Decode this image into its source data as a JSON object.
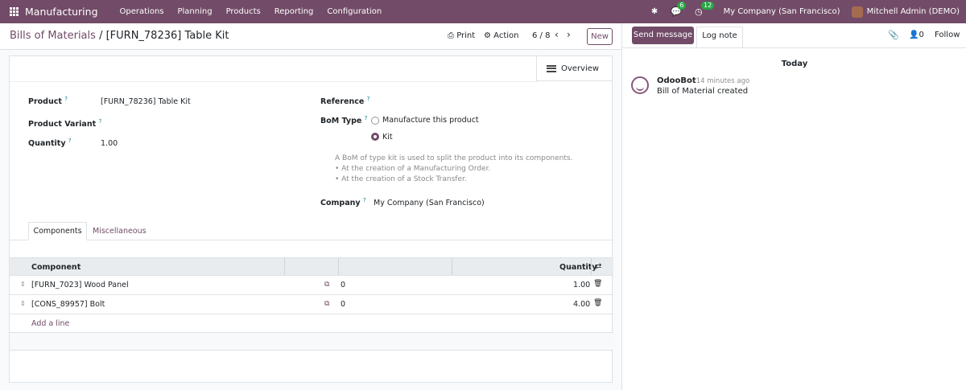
{
  "topnav": {
    "app_name": "Manufacturing",
    "menu": [
      "Operations",
      "Planning",
      "Products",
      "Reporting",
      "Configuration"
    ],
    "messages_count": "6",
    "activities_count": "12",
    "company": "My Company (San Francisco)",
    "user": "Mitchell Admin (DEMO)",
    "accent_color": "#714b67"
  },
  "control": {
    "breadcrumb_parent": "Bills of Materials",
    "breadcrumb_sep": "/",
    "breadcrumb_current": "[FURN_78236] Table Kit",
    "print_label": "Print",
    "action_label": "Action",
    "pager": "6 / 8",
    "new_label": "New"
  },
  "form": {
    "overview_label": "Overview",
    "product_label": "Product",
    "product_value": "[FURN_78236] Table Kit",
    "variant_label": "Product Variant",
    "quantity_label": "Quantity",
    "quantity_value": "1.00",
    "reference_label": "Reference",
    "bom_type_label": "BoM Type",
    "bom_type_options": [
      "Manufacture this product",
      "Kit"
    ],
    "bom_type_selected": "Kit",
    "kit_note": [
      "A BoM of type kit is used to split the product into its components.",
      "• At the creation of a Manufacturing Order.",
      "• At the creation of a Stock Transfer."
    ],
    "company_label": "Company",
    "company_value": "My Company (San Francisco)",
    "tooltip_mark": "?"
  },
  "tabs": [
    "Components",
    "Miscellaneous"
  ],
  "components_table": {
    "columns": {
      "component": "Component",
      "quantity": "Quantity"
    },
    "rows": [
      {
        "component": "[FURN_7023] Wood Panel",
        "extra": "0",
        "quantity": "1.00"
      },
      {
        "component": "[CONS_89957] Bolt",
        "extra": "0",
        "quantity": "4.00"
      }
    ],
    "add_line": "Add a line"
  },
  "chatter": {
    "send_message": "Send message",
    "log_note": "Log note",
    "followers_count": "0",
    "follow": "Follow",
    "date_separator": "Today",
    "messages": [
      {
        "author": "OdooBot",
        "time": "- 14 minutes ago",
        "body": "Bill of Material created"
      }
    ]
  }
}
